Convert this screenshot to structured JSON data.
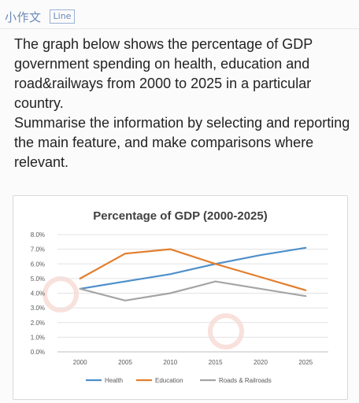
{
  "header": {
    "title": "小作文",
    "tag": "Line"
  },
  "prompt": {
    "paragraph1": "The graph below shows the percentage of GDP government spending on health, education and road&railways from 2000 to 2025 in a particular country.",
    "paragraph2": "Summarise the information by selecting and reporting the main feature, and make comparisons where relevant."
  },
  "chart_data": {
    "type": "line",
    "title": "Percentage of GDP (2000-2025)",
    "x": [
      "2000",
      "2005",
      "2010",
      "2015",
      "2020",
      "2025"
    ],
    "y_ticks": [
      "0.0%",
      "1.0%",
      "2.0%",
      "3.0%",
      "4.0%",
      "5.0%",
      "6.0%",
      "7.0%",
      "8.0%"
    ],
    "ylim": [
      0,
      8
    ],
    "grid": true,
    "legend_position": "bottom",
    "series": [
      {
        "name": "Health",
        "color": "#4e8fc9",
        "values": [
          4.3,
          4.8,
          5.3,
          6.0,
          6.6,
          7.1
        ]
      },
      {
        "name": "Education",
        "color": "#e37e2d",
        "values": [
          5.0,
          6.7,
          7.0,
          6.0,
          5.1,
          4.2
        ]
      },
      {
        "name": "Roads & Railroads",
        "color": "#a5a5a5",
        "values": [
          4.3,
          3.5,
          4.0,
          4.8,
          4.3,
          3.8
        ]
      }
    ]
  }
}
